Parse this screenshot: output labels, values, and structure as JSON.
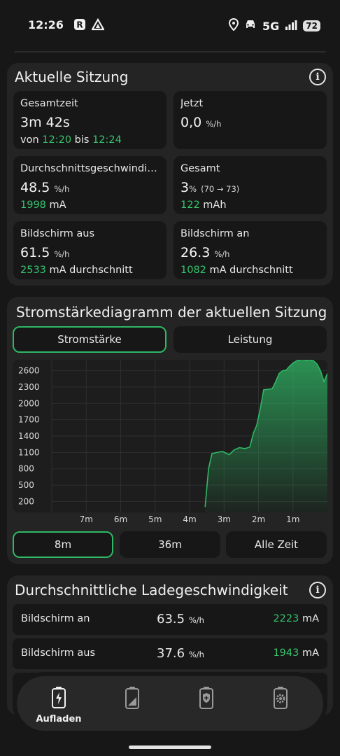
{
  "status_bar": {
    "time": "12:26",
    "network": "5G",
    "battery": "72"
  },
  "current_session": {
    "title": "Aktuelle Sitzung",
    "total_time": {
      "label": "Gesamtzeit",
      "value": "3m 42s",
      "from_word": "von",
      "from": "12:20",
      "to_word": "bis",
      "to": "12:24"
    },
    "now": {
      "label": "Jetzt",
      "value": "0,0",
      "unit": "%/h"
    },
    "avg_speed": {
      "label": "Durchschnittsgeschwindigk..",
      "value": "48.5",
      "unit": "%/h",
      "current": "1998",
      "current_unit": "mA"
    },
    "total": {
      "label": "Gesamt",
      "value": "3",
      "unit": "%",
      "range": "(70 → 73)",
      "charge": "122",
      "charge_unit": "mAh"
    },
    "screen_off": {
      "label": "Bildschirm aus",
      "value": "61.5",
      "unit": "%/h",
      "current": "2533",
      "current_text": "mA durchschnitt"
    },
    "screen_on": {
      "label": "Bildschirm an",
      "value": "26.3",
      "unit": "%/h",
      "current": "1082",
      "current_text": "mA durchschnitt"
    }
  },
  "chart_section": {
    "title": "Stromstärkediagramm der aktuellen Sitzung",
    "tabs": [
      "Stromstärke",
      "Leistung"
    ],
    "ranges": [
      "8m",
      "36m",
      "Alle Zeit"
    ]
  },
  "chart_data": {
    "type": "area",
    "title": "",
    "xlabel": "",
    "ylabel": "",
    "y_ticks": [
      200,
      500,
      800,
      1100,
      1400,
      1700,
      2000,
      2300,
      2600
    ],
    "x_ticks": [
      "7m",
      "6m",
      "5m",
      "4m",
      "3m",
      "2m",
      "1m"
    ],
    "x_ticks_minutes_ago": [
      7,
      6,
      5,
      4,
      3,
      2,
      1
    ],
    "xlim_minutes_ago": [
      8,
      0
    ],
    "ylim": [
      0,
      2800
    ],
    "grid": true,
    "color": "#2fb865",
    "series": [
      {
        "x_minutes_ago": [
          3.55,
          3.45,
          3.35,
          3.2,
          3.05,
          2.95,
          2.85,
          2.7,
          2.55,
          2.4,
          2.25,
          2.15,
          2.05,
          1.95,
          1.85,
          1.7,
          1.6,
          1.5,
          1.4,
          1.3,
          1.2,
          1.1,
          1.0,
          0.9,
          0.8,
          0.7,
          0.6,
          0.5,
          0.4,
          0.3,
          0.2,
          0.1,
          0.0
        ],
        "values": [
          100,
          800,
          1080,
          1100,
          1120,
          1090,
          1060,
          1150,
          1190,
          1170,
          1200,
          1450,
          1600,
          1900,
          2250,
          2260,
          2270,
          2400,
          2550,
          2600,
          2610,
          2680,
          2740,
          2780,
          2800,
          2810,
          2790,
          2800,
          2780,
          2720,
          2600,
          2400,
          2550
        ]
      }
    ]
  },
  "avg_charging": {
    "title": "Durchschnittliche Ladegeschwindigkeit",
    "rows": [
      {
        "label": "Bildschirm an",
        "value": "63.5",
        "unit": "%/h",
        "current": "2223",
        "current_unit": "mA"
      },
      {
        "label": "Bildschirm aus",
        "value": "37.6",
        "unit": "%/h",
        "current": "1943",
        "current_unit": "mA"
      }
    ]
  },
  "bottom_nav": {
    "items": [
      {
        "label": "Aufladen",
        "icon": "charging-battery-icon",
        "active": true
      },
      {
        "label": "",
        "icon": "battery-level-icon",
        "active": false
      },
      {
        "label": "",
        "icon": "battery-health-icon",
        "active": false
      },
      {
        "label": "",
        "icon": "battery-settings-icon",
        "active": false
      }
    ]
  }
}
